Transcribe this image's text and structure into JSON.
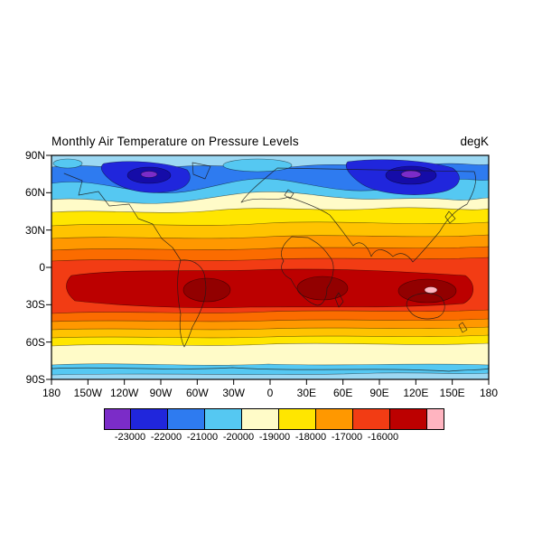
{
  "chart_data": {
    "type": "heatmap",
    "subtype": "filled-contour-world-map",
    "title": "Monthly Air Temperature on Pressure Levels",
    "units_label": "degK",
    "lat_ticks": [
      "90N",
      "60N",
      "30N",
      "0",
      "30S",
      "60S",
      "90S"
    ],
    "lon_ticks": [
      "180",
      "150W",
      "120W",
      "90W",
      "60W",
      "30W",
      "0",
      "30E",
      "60E",
      "90E",
      "120E",
      "150E",
      "180"
    ],
    "colorbar": {
      "labels": [
        "-23000",
        "-22000",
        "-21000",
        "-20000",
        "-19000",
        "-18000",
        "-17000",
        "-16000"
      ],
      "colors": [
        "#7B2CC8",
        "#2026DC",
        "#2E7BF0",
        "#55C8F2",
        "#FFFBC8",
        "#FFE600",
        "#FF9800",
        "#F23C14",
        "#BC0000",
        "#FFB4C0"
      ],
      "box_widths": [
        28,
        40,
        40,
        40,
        40,
        40,
        40,
        40,
        40,
        18
      ]
    },
    "map_colors": {
      "pale_blue": "#9CD8F3",
      "deep_navy": "#150CA8",
      "gold": "#FFC300",
      "deep_orange": "#FB6C00",
      "dark_red_blob": "#920000",
      "coastline": "#1a1a1a"
    },
    "pattern_summary": "Zonal temperature bands: coldest dark-blue/purple cells over the Arctic near 60-90N (centered over northern Canada and Siberia), cyan and cream bands around 50-70N, yellow and orange 25-45N, broad red maximum between 10N and 30S with dark-red cores over South America, southern Africa and the Australia/Indian-Ocean sector (small pink innermost core near 120E 30S), grading back through orange/yellow to a pale cream band near 55-75S and light blue over the Antarctic margin."
  }
}
